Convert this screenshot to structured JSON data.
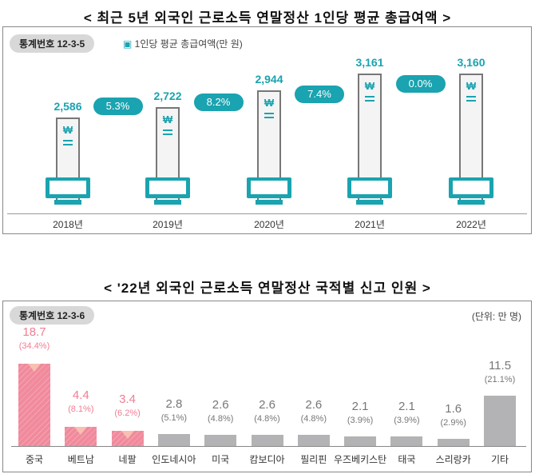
{
  "chart_data": [
    {
      "type": "bar",
      "title": "< 최근 5년 외국인 근로소득 연말정산 1인당 평균 총급여액 >",
      "stat_no": "통계번호 12-3-5",
      "legend": "1인당 평균 총급여액(만 원)",
      "categories": [
        "2018년",
        "2019년",
        "2020년",
        "2021년",
        "2022년"
      ],
      "values": [
        2586,
        2722,
        2944,
        3161,
        3160
      ],
      "value_labels": [
        "2,586",
        "2,722",
        "2,944",
        "3,161",
        "3,160"
      ],
      "growth": [
        "5.3%",
        "8.2%",
        "7.4%",
        "0.0%"
      ],
      "symbol": "₩",
      "color": "#1aa3b0"
    },
    {
      "type": "bar",
      "title": "< '22년 외국인 근로소득 연말정산 국적별 신고 인원 >",
      "stat_no": "통계번호 12-3-6",
      "unit": "(단위: 만 명)",
      "categories": [
        "중국",
        "베트남",
        "네팔",
        "인도네시아",
        "미국",
        "캄보디아",
        "필리핀",
        "우즈베키스탄",
        "태국",
        "스리랑카",
        "기타"
      ],
      "values": [
        18.7,
        4.4,
        3.4,
        2.8,
        2.6,
        2.6,
        2.6,
        2.1,
        2.1,
        1.6,
        11.5
      ],
      "value_labels": [
        "18.7",
        "4.4",
        "3.4",
        "2.8",
        "2.6",
        "2.6",
        "2.6",
        "2.1",
        "2.1",
        "1.6",
        "11.5"
      ],
      "shares": [
        "(34.4%)",
        "(8.1%)",
        "(6.2%)",
        "(5.1%)",
        "(4.8%)",
        "(4.8%)",
        "(4.8%)",
        "(3.9%)",
        "(3.9%)",
        "(2.9%)",
        "(21.1%)"
      ],
      "highlight_count": 3,
      "colors": {
        "highlight": "#f07d93",
        "other": "#b3b3b5"
      }
    }
  ]
}
